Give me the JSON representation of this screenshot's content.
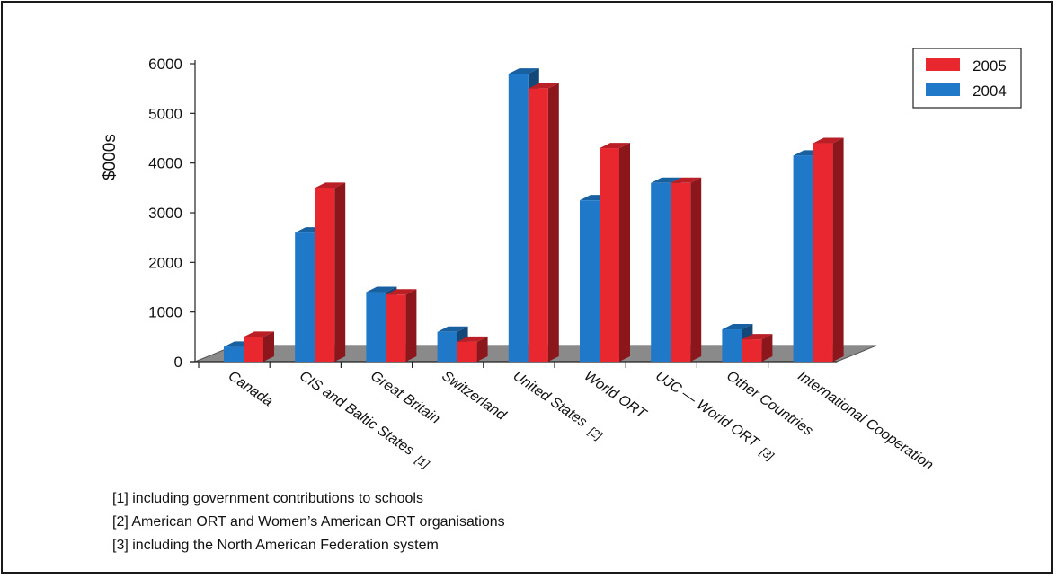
{
  "chart_data": {
    "type": "bar",
    "title": "",
    "ylabel": "$000s",
    "xlabel": "",
    "ylim": [
      0,
      6000
    ],
    "yticks": [
      0,
      1000,
      2000,
      3000,
      4000,
      5000,
      6000
    ],
    "grid": false,
    "legend_position": "top-right",
    "categories": [
      {
        "label": "Canada",
        "note": ""
      },
      {
        "label": "CIS and Baltic States",
        "note": "[1]"
      },
      {
        "label": "Great Britain",
        "note": ""
      },
      {
        "label": "Switzerland",
        "note": ""
      },
      {
        "label": "United States",
        "note": "[2]"
      },
      {
        "label": "World ORT",
        "note": ""
      },
      {
        "label": "UJC — World ORT",
        "note": "[3]"
      },
      {
        "label": "Other Countries",
        "note": ""
      },
      {
        "label": "International Cooperation",
        "note": ""
      }
    ],
    "series": [
      {
        "name": "2004",
        "color": "#1f78c8",
        "values": [
          300,
          2600,
          1400,
          600,
          5800,
          3250,
          3600,
          650,
          4150
        ]
      },
      {
        "name": "2005",
        "color": "#e8272e",
        "values": [
          500,
          3500,
          1350,
          400,
          5500,
          4300,
          3600,
          450,
          4400
        ]
      }
    ],
    "legend": [
      {
        "name": "2005",
        "color": "#e8272e"
      },
      {
        "name": "2004",
        "color": "#1f78c8"
      }
    ]
  },
  "footnotes": [
    "[1]  including government contributions to schools",
    "[2]  American ORT and Women’s American ORT organisations",
    "[3]  including the North American Federation system"
  ]
}
